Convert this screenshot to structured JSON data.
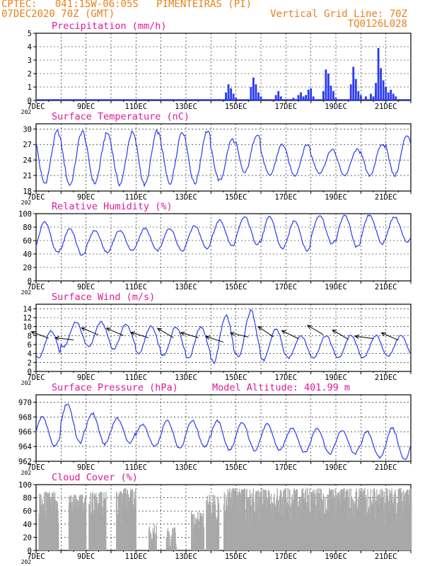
{
  "header": {
    "line1_left": "CPTEC:   041:15W-06:05S   PIMENTEIRAS (PI)",
    "line2_left": "07DEC2020 70Z (GMT)",
    "line2_right": "Vertical Grid Line: 70Z",
    "line3_right": "TQ0126L028"
  },
  "x_axis": {
    "ticks": [
      "7DEC",
      "9DEC",
      "11DEC",
      "13DEC",
      "15DEC",
      "17DEC",
      "19DEC",
      "21DEC"
    ],
    "tick_days": [
      0,
      2,
      4,
      6,
      8,
      10,
      12,
      14
    ],
    "range_days": [
      0,
      15
    ],
    "clipped_year_label": "202"
  },
  "chart_data": [
    {
      "id": "precip",
      "type": "bar",
      "title": "Precipitation (mm/h)",
      "ylim": [
        0,
        5
      ],
      "yticks": [
        0,
        1,
        2,
        3,
        4,
        5
      ],
      "color": "#2a3af0",
      "bars": [
        [
          7.6,
          0.6
        ],
        [
          7.7,
          1.2
        ],
        [
          7.8,
          0.9
        ],
        [
          7.9,
          0.5
        ],
        [
          8.0,
          0.2
        ],
        [
          8.6,
          1.0
        ],
        [
          8.7,
          1.7
        ],
        [
          8.8,
          1.2
        ],
        [
          8.9,
          0.6
        ],
        [
          9.0,
          0.3
        ],
        [
          9.6,
          0.4
        ],
        [
          9.7,
          0.7
        ],
        [
          9.8,
          0.3
        ],
        [
          10.0,
          0.1
        ],
        [
          10.3,
          0.2
        ],
        [
          10.5,
          0.4
        ],
        [
          10.6,
          0.6
        ],
        [
          10.7,
          0.3
        ],
        [
          10.8,
          0.4
        ],
        [
          10.9,
          0.8
        ],
        [
          11.0,
          0.9
        ],
        [
          11.1,
          0.3
        ],
        [
          11.5,
          0.7
        ],
        [
          11.6,
          2.3
        ],
        [
          11.7,
          2.0
        ],
        [
          11.8,
          1.1
        ],
        [
          11.9,
          0.7
        ],
        [
          12.0,
          0.2
        ],
        [
          12.6,
          1.2
        ],
        [
          12.7,
          2.5
        ],
        [
          12.8,
          1.6
        ],
        [
          12.9,
          0.7
        ],
        [
          13.0,
          0.4
        ],
        [
          13.2,
          0.3
        ],
        [
          13.4,
          0.5
        ],
        [
          13.5,
          0.3
        ],
        [
          13.6,
          0.6
        ],
        [
          13.6,
          1.3
        ],
        [
          13.7,
          3.9
        ],
        [
          13.8,
          2.4
        ],
        [
          13.9,
          1.5
        ],
        [
          14.0,
          1.0
        ],
        [
          14.1,
          0.6
        ],
        [
          14.2,
          0.8
        ],
        [
          14.3,
          0.5
        ],
        [
          14.4,
          0.3
        ]
      ]
    },
    {
      "id": "temp",
      "type": "line",
      "title": "Surface Temperature (nC)",
      "ylim": [
        18,
        31
      ],
      "yticks": [
        18,
        21,
        24,
        27,
        30
      ],
      "color": "#2a3af0",
      "daily_min": [
        19.5,
        19.2,
        19.5,
        19.3,
        19.2,
        19.5,
        19.5,
        20.0,
        21.5,
        21.0,
        21.0,
        21.5,
        21.0,
        21.0,
        21.0
      ],
      "daily_max": [
        29.5,
        29.5,
        29.2,
        29.3,
        29.5,
        29.5,
        29.6,
        28.0,
        29.0,
        27.0,
        27.0,
        26.0,
        26.0,
        27.0,
        28.8
      ]
    },
    {
      "id": "rh",
      "type": "line",
      "title": "Relative Humidity (%)",
      "ylim": [
        0,
        100
      ],
      "yticks": [
        0,
        20,
        40,
        60,
        80,
        100
      ],
      "color": "#2a3af0",
      "daily_min": [
        42,
        38,
        42,
        45,
        45,
        45,
        48,
        52,
        55,
        48,
        45,
        55,
        50,
        55,
        58
      ],
      "daily_max": [
        88,
        78,
        75,
        75,
        78,
        78,
        82,
        90,
        95,
        95,
        90,
        98,
        98,
        98,
        95
      ]
    },
    {
      "id": "wind",
      "type": "line",
      "title": "Surface Wind (m/s)",
      "ylim": [
        0,
        15
      ],
      "yticks": [
        0,
        2,
        4,
        6,
        8,
        10,
        12,
        14
      ],
      "color": "#2a3af0",
      "daily_min": [
        3.0,
        5.5,
        5.5,
        5.0,
        4.0,
        3.5,
        3.0,
        2.0,
        3.0,
        2.5,
        3.0,
        3.0,
        3.0,
        3.0,
        3.5
      ],
      "daily_max": [
        9.0,
        11.0,
        11.0,
        10.5,
        10.0,
        10.0,
        10.0,
        12.5,
        13.5,
        9.5,
        8.0,
        8.0,
        8.0,
        8.0,
        8.0
      ],
      "arrows_at_days": [
        0.5,
        1.5,
        2.5,
        3.5,
        4.5,
        5.5,
        6.5,
        7.5,
        8.5,
        9.5,
        10.5,
        11.5,
        12.5,
        13.5,
        14.5
      ]
    },
    {
      "id": "pres",
      "type": "line",
      "title": "Surface Pressure (hPa)",
      "annotation": "Model Altitude: 401.99 m",
      "ylim": [
        962,
        971
      ],
      "yticks": [
        962,
        964,
        966,
        968,
        970
      ],
      "color": "#2a3af0",
      "daily_min": [
        964.0,
        964.5,
        964.3,
        964.5,
        964.0,
        963.8,
        964.0,
        963.5,
        963.5,
        963.5,
        963.2,
        963.0,
        963.0,
        962.5,
        962.2
      ],
      "daily_max": [
        968.0,
        969.8,
        968.5,
        967.8,
        967.0,
        967.5,
        967.5,
        967.5,
        967.2,
        967.0,
        966.5,
        966.5,
        966.2,
        966.0,
        966.5
      ]
    },
    {
      "id": "cloud",
      "type": "area",
      "title": "Cloud Cover (%)",
      "ylim": [
        0,
        100
      ],
      "yticks": [
        0,
        20,
        40,
        60,
        80,
        100
      ],
      "color": "#a8a8a8",
      "blocks": [
        [
          0.1,
          0.9,
          90
        ],
        [
          1.3,
          2.0,
          85
        ],
        [
          2.1,
          2.8,
          90
        ],
        [
          3.2,
          4.0,
          95
        ],
        [
          4.5,
          4.8,
          40
        ],
        [
          5.2,
          5.6,
          35
        ],
        [
          6.2,
          6.7,
          60
        ],
        [
          6.8,
          7.3,
          85
        ],
        [
          7.5,
          15.0,
          95
        ]
      ]
    }
  ]
}
